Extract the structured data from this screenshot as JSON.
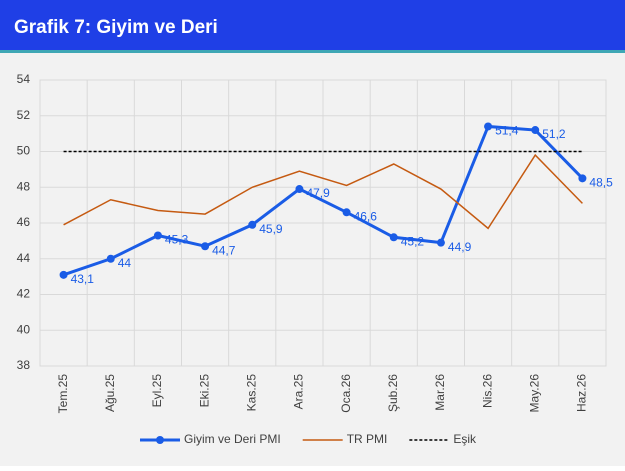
{
  "chart_data": {
    "type": "line",
    "title": "Grafik 7: Giyim ve Deri",
    "categories": [
      "Tem.25",
      "Ağu.25",
      "Eyl.25",
      "Eki.25",
      "Kas.25",
      "Ara.25",
      "Oca.26",
      "Şub.26",
      "Mar.26",
      "Nis.26",
      "May.26",
      "Haz.26"
    ],
    "series": [
      {
        "name": "Giyim ve Deri PMI",
        "color": "#1a5ce6",
        "values": [
          43.1,
          44,
          45.3,
          44.7,
          45.9,
          47.9,
          46.6,
          45.2,
          44.9,
          51.4,
          51.2,
          48.5
        ],
        "value_labels": [
          "43,1",
          "44",
          "45,3",
          "44,7",
          "45,9",
          "47,9",
          "46,6",
          "45,2",
          "44,9",
          "51,4",
          "51,2",
          "48,5"
        ],
        "markers": true
      },
      {
        "name": "TR PMI",
        "color": "#c55a11",
        "values": [
          45.9,
          47.3,
          46.7,
          46.5,
          48.0,
          48.9,
          48.1,
          49.3,
          47.9,
          45.7,
          49.8,
          47.1
        ]
      },
      {
        "name": "Eşik",
        "color": "#000000",
        "dashed": true,
        "values": [
          50,
          50,
          50,
          50,
          50,
          50,
          50,
          50,
          50,
          50,
          50,
          50
        ]
      }
    ],
    "ylim": [
      38,
      54
    ],
    "yticks": [
      38,
      40,
      42,
      44,
      46,
      48,
      50,
      52,
      54
    ],
    "grid": true,
    "legend": "bottom"
  }
}
